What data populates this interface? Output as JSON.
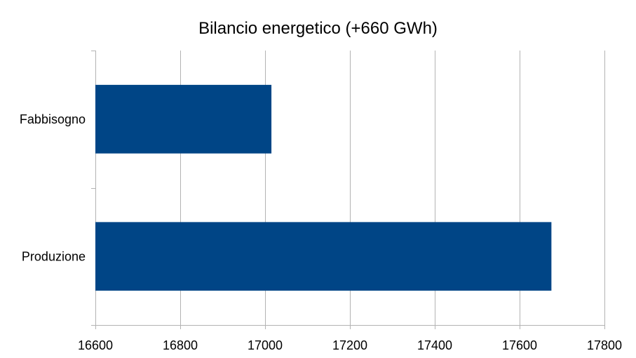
{
  "chart_data": {
    "type": "bar",
    "orientation": "horizontal",
    "title": "Bilancio energetico (+660 GWh)",
    "categories": [
      "Fabbisogno",
      "Produzione"
    ],
    "values": [
      17015,
      17675
    ],
    "xlim": [
      16600,
      17800
    ],
    "xticks": [
      16600,
      16800,
      17000,
      17200,
      17400,
      17600,
      17800
    ],
    "xtick_labels": [
      "16600",
      "16800",
      "17000",
      "17200",
      "17400",
      "17600",
      "17800"
    ],
    "grid": true,
    "legend": "none",
    "bar_color": "#004586",
    "grid_color": "#b3b3b3"
  }
}
